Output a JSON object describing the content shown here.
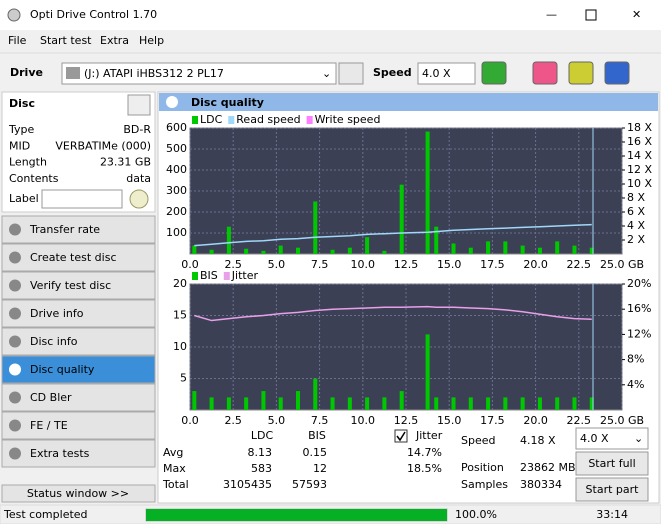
{
  "window": {
    "title": "Opti Drive Control 1.70"
  },
  "menu": [
    "File",
    "Start test",
    "Extra",
    "Help"
  ],
  "toolbar": {
    "drive_label": "Drive",
    "drive": "(J:)  ATAPI iHBS312  2 PL17",
    "speed_label": "Speed",
    "speed": "4.0 X"
  },
  "disc": {
    "title": "Disc",
    "fields": [
      [
        "Type",
        "BD-R"
      ],
      [
        "MID",
        "VERBATIMe (000)"
      ],
      [
        "Length",
        "23.31 GB"
      ],
      [
        "Contents",
        "data"
      ]
    ],
    "label": "Label"
  },
  "nav": {
    "items": [
      "Transfer rate",
      "Create test disc",
      "Verify test disc",
      "Drive info",
      "Disc info",
      "Disc quality",
      "CD Bler",
      "FE / TE",
      "Extra tests"
    ],
    "active": 5
  },
  "status_window": "Status window >>",
  "panel_title": "Disc quality",
  "chart_data": [
    {
      "type": "combo",
      "x": [
        0.25,
        1.25,
        2.25,
        3.25,
        4.25,
        5.25,
        6.25,
        7.25,
        8.25,
        9.25,
        10.25,
        11.25,
        12.25,
        13.75,
        14.25,
        15.25,
        16.25,
        17.25,
        18.25,
        19.25,
        20.25,
        21.25,
        22.25,
        23.25
      ],
      "series": [
        {
          "name": "LDC",
          "color": "#00c800",
          "values": [
            40,
            20,
            130,
            25,
            15,
            40,
            30,
            250,
            20,
            30,
            80,
            15,
            330,
            583,
            130,
            50,
            30,
            60,
            60,
            40,
            30,
            60,
            40,
            30
          ]
        },
        {
          "name": "Read speed",
          "color": "#9fd8f8",
          "axis": "y2",
          "values": [
            1.2,
            1.4,
            1.6,
            1.8,
            1.9,
            2.1,
            2.2,
            2.4,
            2.5,
            2.6,
            2.8,
            2.9,
            3.0,
            3.1,
            3.2,
            3.4,
            3.5,
            3.6,
            3.7,
            3.8,
            3.9,
            4.0,
            4.1,
            4.2
          ]
        },
        {
          "name": "Write speed",
          "color": "#ff80ff",
          "axis": "y2",
          "values": [
            null,
            null,
            null,
            null,
            null,
            null,
            null,
            null,
            null,
            null,
            null,
            null,
            null,
            null,
            null,
            null,
            null,
            null,
            null,
            null,
            null,
            null,
            null,
            null
          ]
        }
      ],
      "xlim": [
        0,
        25
      ],
      "xticks": [
        {
          "value": 0,
          "label": "0.0"
        },
        {
          "value": 2.5,
          "label": "2.5"
        },
        {
          "value": 5,
          "label": "5.0"
        },
        {
          "value": 7.5,
          "label": "7.5"
        },
        {
          "value": 10,
          "label": "10.0"
        },
        {
          "value": 12.5,
          "label": "12.5"
        },
        {
          "value": 15,
          "label": "15.0"
        },
        {
          "value": 17.5,
          "label": "17.5"
        },
        {
          "value": 20,
          "label": "20.0"
        },
        {
          "value": 22.5,
          "label": "22.5"
        },
        {
          "value": 25,
          "label": "25.0 GB"
        }
      ],
      "ylim": [
        0,
        600
      ],
      "yticks": [
        100,
        200,
        300,
        400,
        500,
        600
      ],
      "y2lim": [
        0,
        18
      ],
      "y2ticks": [
        {
          "value": 2,
          "label": "2 X"
        },
        {
          "value": 4,
          "label": "4 X"
        },
        {
          "value": 6,
          "label": "6 X"
        },
        {
          "value": 8,
          "label": "8 X"
        },
        {
          "value": 10,
          "label": "10 X"
        },
        {
          "value": 12,
          "label": "12 X"
        },
        {
          "value": 14,
          "label": "14 X"
        },
        {
          "value": 16,
          "label": "16 X"
        },
        {
          "value": 18,
          "label": "18 X"
        }
      ],
      "grid": true
    },
    {
      "type": "combo",
      "x": [
        0.25,
        1.25,
        2.25,
        3.25,
        4.25,
        5.25,
        6.25,
        7.25,
        8.25,
        9.25,
        10.25,
        11.25,
        12.25,
        13.75,
        14.25,
        15.25,
        16.25,
        17.25,
        18.25,
        19.25,
        20.25,
        21.25,
        22.25,
        23.25
      ],
      "series": [
        {
          "name": "BIS",
          "color": "#00c800",
          "values": [
            3,
            2,
            2,
            2,
            3,
            2,
            3,
            5,
            2,
            2,
            2,
            2,
            3,
            12,
            2,
            2,
            2,
            2,
            2,
            2,
            2,
            2,
            2,
            2
          ]
        },
        {
          "name": "Jitter",
          "color": "#e8a0e8",
          "axis": "y2",
          "values": [
            15.0,
            14.2,
            14.5,
            14.8,
            15.0,
            15.3,
            15.5,
            15.8,
            16.0,
            16.1,
            16.2,
            16.3,
            16.3,
            16.4,
            16.3,
            16.3,
            16.2,
            16.1,
            15.9,
            15.6,
            15.2,
            14.8,
            14.5,
            14.4
          ]
        }
      ],
      "xlim": [
        0,
        25
      ],
      "xticks": [
        {
          "value": 0,
          "label": "0.0"
        },
        {
          "value": 2.5,
          "label": "2.5"
        },
        {
          "value": 5,
          "label": "5.0"
        },
        {
          "value": 7.5,
          "label": "7.5"
        },
        {
          "value": 10,
          "label": "10.0"
        },
        {
          "value": 12.5,
          "label": "12.5"
        },
        {
          "value": 15,
          "label": "15.0"
        },
        {
          "value": 17.5,
          "label": "17.5"
        },
        {
          "value": 20,
          "label": "20.0"
        },
        {
          "value": 22.5,
          "label": "22.5"
        },
        {
          "value": 25,
          "label": "25.0 GB"
        }
      ],
      "ylim": [
        0,
        20
      ],
      "yticks": [
        5,
        10,
        15,
        20
      ],
      "y2lim": [
        0,
        20
      ],
      "y2ticks": [
        {
          "value": 4,
          "label": "4%"
        },
        {
          "value": 8,
          "label": "8%"
        },
        {
          "value": 12,
          "label": "12%"
        },
        {
          "value": 16,
          "label": "16%"
        },
        {
          "value": 20,
          "label": "20%"
        }
      ],
      "grid": true
    }
  ],
  "stats": {
    "headers": [
      "LDC",
      "BIS"
    ],
    "rows": [
      [
        "Avg",
        8.13,
        0.15
      ],
      [
        "Max",
        583,
        12
      ],
      [
        "Total",
        3105435,
        57593
      ]
    ],
    "jitter_label": "Jitter",
    "jitter": [
      "14.7%",
      "18.5%"
    ],
    "info": [
      [
        "Speed",
        "4.18 X"
      ],
      [
        "Position",
        "23862 MB"
      ],
      [
        "Samples",
        "380334"
      ]
    ],
    "speed": "4.0 X",
    "buttons": [
      "Start full",
      "Start part"
    ]
  },
  "status": {
    "text": "Test completed",
    "progress": {
      "value": 100,
      "label": "100.0%"
    },
    "time": "33:14"
  }
}
